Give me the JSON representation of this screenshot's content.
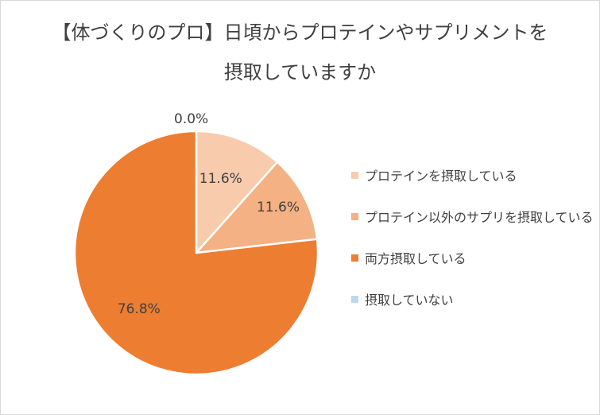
{
  "chart_data": {
    "type": "pie",
    "title_lines": [
      "【体づくりのプロ】日頃からプロテインやサプリメントを",
      "摂取していますか"
    ],
    "categories": [
      "プロテインを摂取している",
      "プロテイン以外のサプリを摂取している",
      "両方摂取している",
      "摂取していない"
    ],
    "values": [
      11.6,
      11.6,
      76.8,
      0.0
    ],
    "data_labels": [
      "11.6%",
      "11.6%",
      "76.8%",
      "0.0%"
    ],
    "colors": [
      "#f8cbad",
      "#f4b183",
      "#ed7d31",
      "#bdd7ee"
    ],
    "legend_position": "right",
    "start_angle_deg": 0,
    "direction": "clockwise"
  }
}
